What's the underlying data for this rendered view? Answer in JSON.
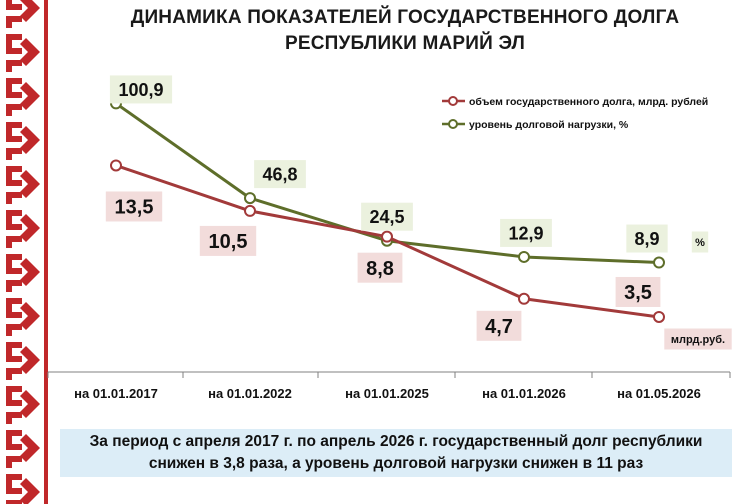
{
  "title_line1": "ДИНАМИКА ПОКАЗАТЕЛЕЙ ГОСУДАРСТВЕННОГО ДОЛГА",
  "title_line2": "РЕСПУБЛИКИ МАРИЙ ЭЛ",
  "summary_line1": "За период с апреля 2017 г. по апрель 2026 г. государственный долг республики",
  "summary_line2": "снижен в 3,8 раза, а уровень долговой нагрузки снижен в 11 раз",
  "colors": {
    "ornament": "#c0282a",
    "debt": "#a23a3a",
    "load": "#5e6e2a",
    "debt_label_bg": "#f2dcdb",
    "load_label_bg": "#ebf1de",
    "summary_bg": "#dcedf7"
  },
  "chart_data": {
    "type": "line",
    "categories": [
      "на 01.01.2017",
      "на 01.01.2022",
      "на 01.01.2025",
      "на 01.01.2026",
      "на 01.05.2026"
    ],
    "series": [
      {
        "name": "объем государственного долга, млрд. рублей",
        "key": "debt",
        "values": [
          13.5,
          10.5,
          8.8,
          4.7,
          3.5
        ],
        "labels": [
          "13,5",
          "10,5",
          "8,8",
          "4,7",
          "3,5"
        ],
        "end_label": "млрд.руб."
      },
      {
        "name": "уровень долговой нагрузки, %",
        "key": "load",
        "values": [
          100.9,
          46.8,
          24.5,
          12.9,
          8.9
        ],
        "labels": [
          "100,9",
          "46,8",
          "24,5",
          "12,9",
          "8,9"
        ],
        "end_label": "%"
      }
    ],
    "legend_position": "top-right",
    "grid": false
  }
}
